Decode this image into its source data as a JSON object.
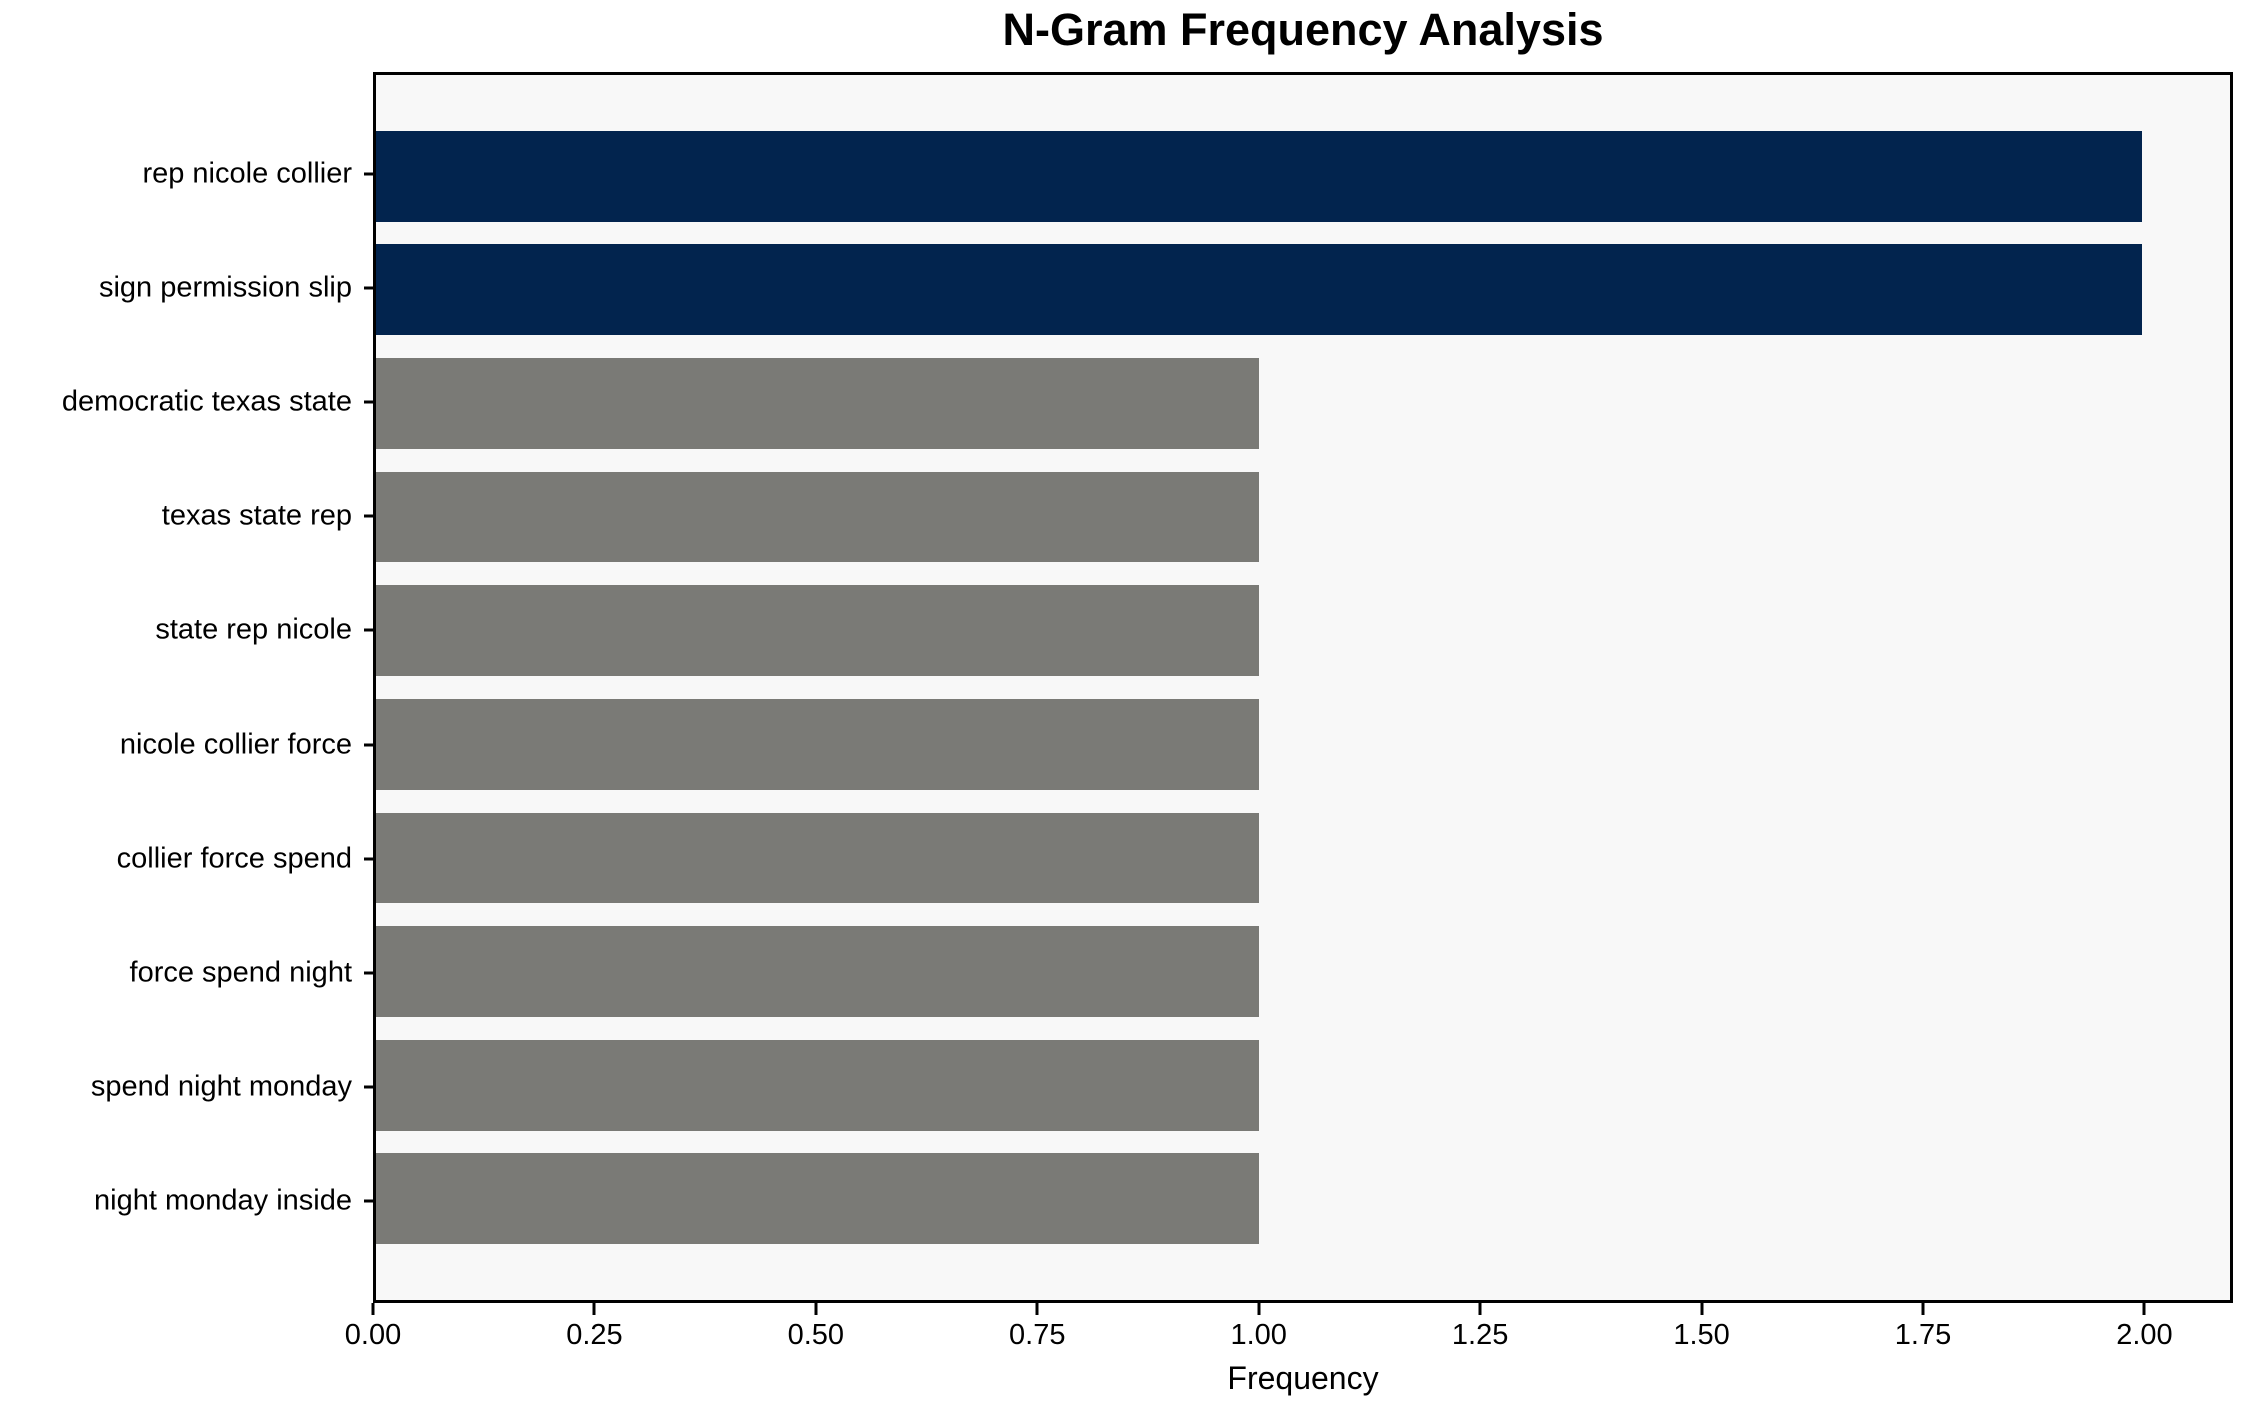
{
  "chart_data": {
    "type": "bar",
    "orientation": "horizontal",
    "title": "N-Gram Frequency Analysis",
    "xlabel": "Frequency",
    "ylabel": "",
    "categories": [
      "rep nicole collier",
      "sign permission slip",
      "democratic texas state",
      "texas state rep",
      "state rep nicole",
      "nicole collier force",
      "collier force spend",
      "force spend night",
      "spend night monday",
      "night monday inside"
    ],
    "values": [
      2,
      2,
      1,
      1,
      1,
      1,
      1,
      1,
      1,
      1
    ],
    "colors_per_bar": [
      "#02244e",
      "#02244e",
      "#7a7a76",
      "#7a7a76",
      "#7a7a76",
      "#7a7a76",
      "#7a7a76",
      "#7a7a76",
      "#7a7a76",
      "#7a7a76"
    ],
    "xlim": [
      0,
      2.1
    ],
    "xticks": {
      "values": [
        0,
        0.25,
        0.5,
        0.75,
        1.0,
        1.25,
        1.5,
        1.75,
        2.0
      ],
      "labels": [
        "0.00",
        "0.25",
        "0.50",
        "0.75",
        "1.00",
        "1.25",
        "1.50",
        "1.75",
        "2.00"
      ]
    },
    "grid": "off",
    "legend": "none",
    "bar_width_fraction": 0.8,
    "colors": {
      "highlight": "#02244e",
      "default_bar": "#7a7a76",
      "plot_background": "#f8f8f8",
      "page_background": "#ffffff",
      "spine": "#000000",
      "text": "#000000"
    }
  }
}
